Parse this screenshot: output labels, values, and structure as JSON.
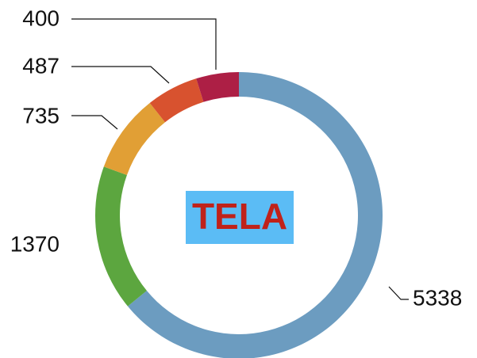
{
  "chart_data": {
    "type": "donut",
    "center_label": "TELA",
    "values": [
      5338,
      1370,
      735,
      487,
      400
    ],
    "colors": [
      "#6c9cc0",
      "#5ca63f",
      "#e19f35",
      "#d8522f",
      "#ad1f45"
    ]
  }
}
